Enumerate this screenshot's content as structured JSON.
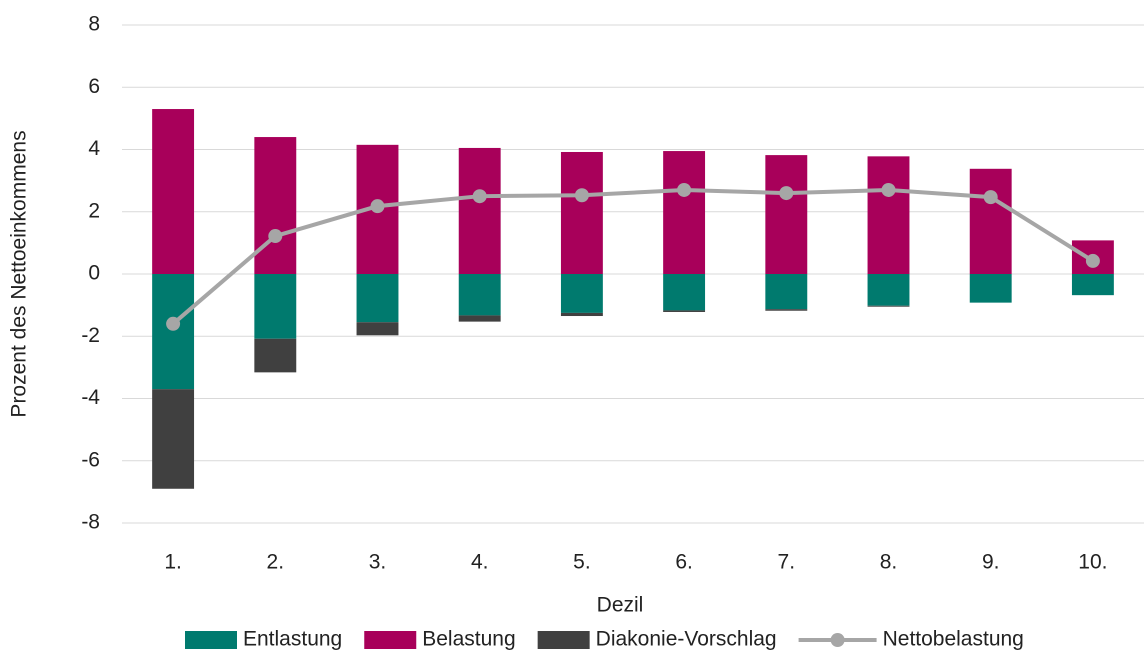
{
  "chart_data": {
    "type": "bar",
    "x_label": "Dezil",
    "y_label": "Prozent des Nettoeinkommens",
    "categories": [
      "1.",
      "2.",
      "3.",
      "4.",
      "5.",
      "6.",
      "7.",
      "8.",
      "9.",
      "10."
    ],
    "series": [
      {
        "name": "Entlastung",
        "type": "bar",
        "color": "#007a6e",
        "values": [
          -3.7,
          -2.08,
          -1.55,
          -1.33,
          -1.25,
          -1.17,
          -1.13,
          -1.02,
          -0.92,
          -0.68
        ]
      },
      {
        "name": "Belastung",
        "type": "bar",
        "color": "#a8005a",
        "values": [
          5.3,
          4.4,
          4.15,
          4.05,
          3.92,
          3.95,
          3.82,
          3.78,
          3.38,
          1.08
        ]
      },
      {
        "name": "Diakonie-Vorschlag",
        "type": "bar",
        "color": "#404040",
        "values": [
          -3.2,
          -1.08,
          -0.42,
          -0.2,
          -0.1,
          -0.05,
          -0.05,
          -0.03,
          0,
          0
        ]
      },
      {
        "name": "Nettobelastung",
        "type": "line",
        "color": "#a6a6a6",
        "values": [
          -1.6,
          1.22,
          2.18,
          2.5,
          2.53,
          2.7,
          2.6,
          2.7,
          2.47,
          0.42
        ]
      }
    ],
    "ylim": [
      -8,
      8
    ],
    "yticks": [
      -8,
      -6,
      -4,
      -2,
      0,
      2,
      4,
      6,
      8
    ],
    "grid": true,
    "legend": "bottom"
  }
}
